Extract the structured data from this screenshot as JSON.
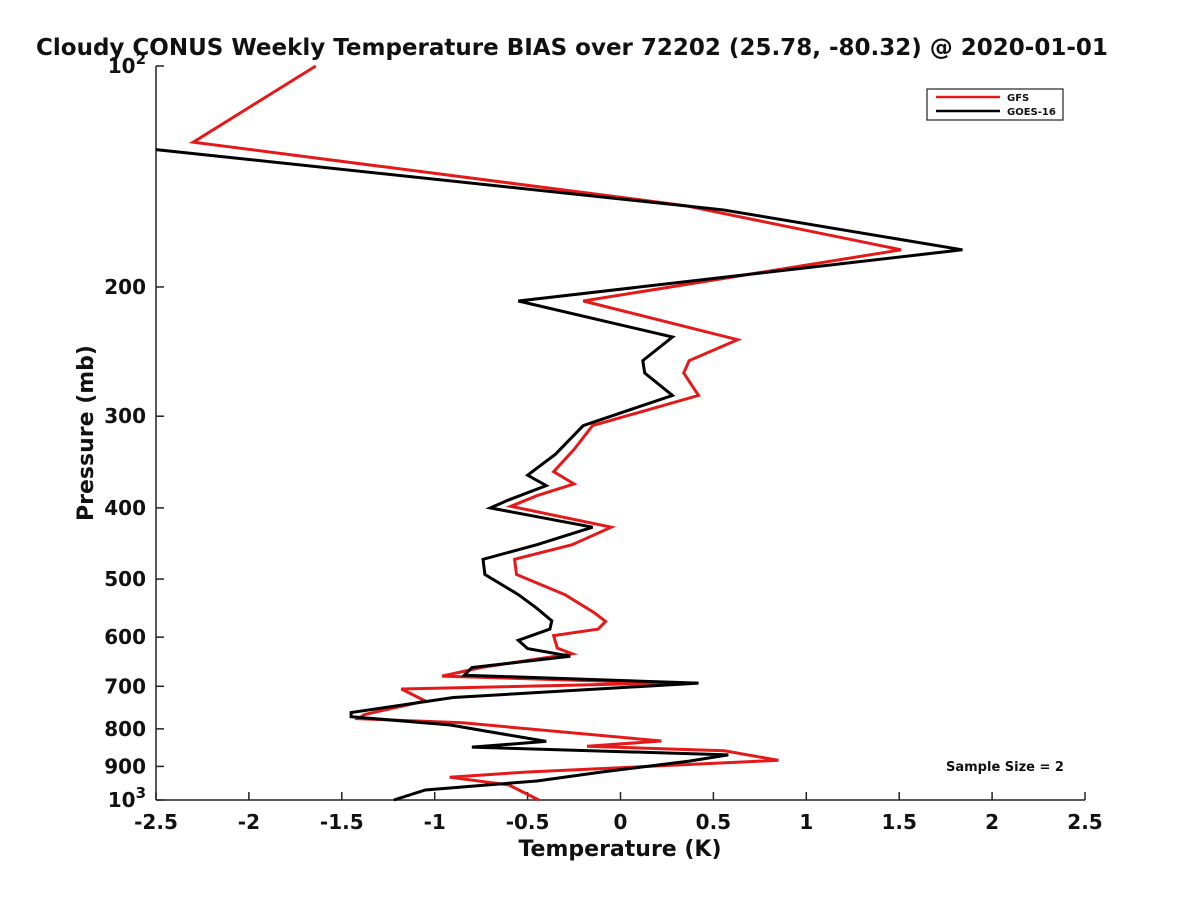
{
  "chart_data": {
    "type": "line",
    "title": "Cloudy CONUS Weekly Temperature BIAS over 72202 (25.78, -80.32) @ 2020-01-01",
    "xlabel": "Temperature (K)",
    "ylabel": "Pressure (mb)",
    "xlim": [
      -2.5,
      2.5
    ],
    "ylim": [
      100,
      1000
    ],
    "y_scale": "log",
    "y_reversed": true,
    "grid": false,
    "legend_position": "top-right",
    "x_ticks": [
      -2.5,
      -2,
      -1.5,
      -1,
      -0.5,
      0,
      0.5,
      1,
      1.5,
      2,
      2.5
    ],
    "x_tick_labels": [
      "-2.5",
      "-2",
      "-1.5",
      "-1",
      "-0.5",
      "0",
      "0.5",
      "1",
      "1.5",
      "2",
      "2.5"
    ],
    "y_ticks": [
      200,
      300,
      400,
      500,
      600,
      700,
      800,
      900
    ],
    "y_tick_labels": [
      "200",
      "300",
      "400",
      "500",
      "600",
      "700",
      "800",
      "900"
    ],
    "y_tick_decades": [
      {
        "value": 100,
        "base": "10",
        "exp": "2"
      },
      {
        "value": 1000,
        "base": "10",
        "exp": "3"
      }
    ],
    "annotation": "Sample Size = 2",
    "series": [
      {
        "name": "GFS",
        "color": "#e41a1a",
        "points": [
          [
            -1.64,
            100
          ],
          [
            -2.3,
            127
          ],
          [
            0.35,
            155
          ],
          [
            1.51,
            178
          ],
          [
            -0.2,
            209
          ],
          [
            0.63,
            236
          ],
          [
            0.37,
            252
          ],
          [
            0.34,
            262
          ],
          [
            0.42,
            281
          ],
          [
            -0.15,
            309
          ],
          [
            -0.25,
            333
          ],
          [
            -0.36,
            357
          ],
          [
            -0.25,
            371
          ],
          [
            -0.45,
            385
          ],
          [
            -0.59,
            398
          ],
          [
            -0.05,
            425
          ],
          [
            -0.26,
            449
          ],
          [
            -0.57,
            470
          ],
          [
            -0.56,
            493
          ],
          [
            -0.3,
            525
          ],
          [
            -0.14,
            556
          ],
          [
            -0.08,
            571
          ],
          [
            -0.12,
            585
          ],
          [
            -0.36,
            597
          ],
          [
            -0.34,
            621
          ],
          [
            -0.26,
            632
          ],
          [
            -0.75,
            660
          ],
          [
            -0.96,
            678
          ],
          [
            0.25,
            693
          ],
          [
            -1.18,
            706
          ],
          [
            -1.05,
            733
          ],
          [
            -1.38,
            765
          ],
          [
            -1.41,
            775
          ],
          [
            -0.85,
            785
          ],
          [
            0.22,
            831
          ],
          [
            -0.18,
            845
          ],
          [
            0.56,
            857
          ],
          [
            0.85,
            883
          ],
          [
            -0.5,
            916
          ],
          [
            -0.92,
            931
          ],
          [
            -0.6,
            954
          ],
          [
            -0.44,
            1000
          ]
        ]
      },
      {
        "name": "GOES-16",
        "color": "#000000",
        "points": [
          [
            -2.5,
            130
          ],
          [
            0.55,
            157
          ],
          [
            1.84,
            178
          ],
          [
            -0.55,
            209
          ],
          [
            0.28,
            234
          ],
          [
            0.12,
            252
          ],
          [
            0.13,
            262
          ],
          [
            0.28,
            281
          ],
          [
            -0.2,
            309
          ],
          [
            -0.35,
            338
          ],
          [
            -0.5,
            361
          ],
          [
            -0.4,
            373
          ],
          [
            -0.6,
            390
          ],
          [
            -0.7,
            400
          ],
          [
            -0.15,
            425
          ],
          [
            -0.45,
            449
          ],
          [
            -0.74,
            470
          ],
          [
            -0.73,
            493
          ],
          [
            -0.55,
            525
          ],
          [
            -0.45,
            548
          ],
          [
            -0.37,
            570
          ],
          [
            -0.38,
            585
          ],
          [
            -0.55,
            606
          ],
          [
            -0.5,
            622
          ],
          [
            -0.27,
            637
          ],
          [
            -0.8,
            660
          ],
          [
            -0.84,
            676
          ],
          [
            0.42,
            693
          ],
          [
            -0.9,
            725
          ],
          [
            -1.45,
            760
          ],
          [
            -1.45,
            770
          ],
          [
            -0.92,
            790
          ],
          [
            -0.4,
            832
          ],
          [
            -0.8,
            847
          ],
          [
            0.58,
            868
          ],
          [
            0.37,
            885
          ],
          [
            -0.1,
            916
          ],
          [
            -0.45,
            942
          ],
          [
            -0.72,
            954
          ],
          [
            -1.05,
            969
          ],
          [
            -1.22,
            1000
          ]
        ]
      }
    ]
  }
}
